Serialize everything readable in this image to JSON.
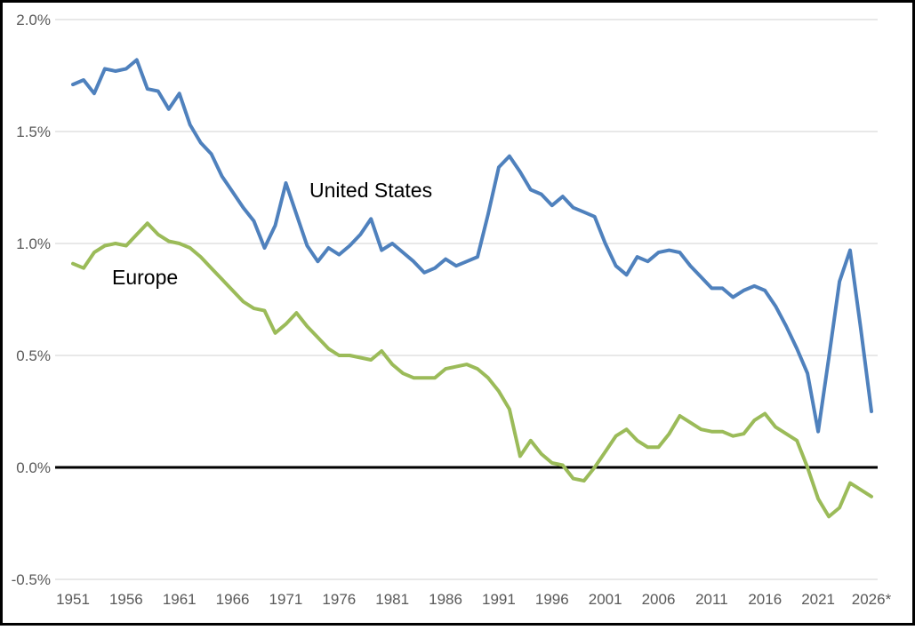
{
  "chart_data": {
    "type": "line",
    "title": "",
    "xlabel": "",
    "ylabel": "",
    "value_format": "percent",
    "grid": "horizontal",
    "legend": "inline-text-annotations",
    "x": [
      1951,
      1952,
      1953,
      1954,
      1955,
      1956,
      1957,
      1958,
      1959,
      1960,
      1961,
      1962,
      1963,
      1964,
      1965,
      1966,
      1967,
      1968,
      1969,
      1970,
      1971,
      1972,
      1973,
      1974,
      1975,
      1976,
      1977,
      1978,
      1979,
      1980,
      1981,
      1982,
      1983,
      1984,
      1985,
      1986,
      1987,
      1988,
      1989,
      1990,
      1991,
      1992,
      1993,
      1994,
      1995,
      1996,
      1997,
      1998,
      1999,
      2000,
      2001,
      2002,
      2003,
      2004,
      2005,
      2006,
      2007,
      2008,
      2009,
      2010,
      2011,
      2012,
      2013,
      2014,
      2015,
      2016,
      2017,
      2018,
      2019,
      2020,
      2021,
      2022,
      2023,
      2024,
      2025,
      2026
    ],
    "series": [
      {
        "name": "United States",
        "color": "#4F81BD",
        "values": [
          1.71,
          1.73,
          1.67,
          1.78,
          1.77,
          1.78,
          1.82,
          1.69,
          1.68,
          1.6,
          1.67,
          1.53,
          1.45,
          1.4,
          1.3,
          1.23,
          1.16,
          1.1,
          0.98,
          1.08,
          1.27,
          1.13,
          0.99,
          0.92,
          0.98,
          0.95,
          0.99,
          1.04,
          1.11,
          0.97,
          1.0,
          0.96,
          0.92,
          0.87,
          0.89,
          0.93,
          0.9,
          0.92,
          0.94,
          1.13,
          1.34,
          1.39,
          1.32,
          1.24,
          1.22,
          1.17,
          1.21,
          1.16,
          1.14,
          1.12,
          1.0,
          0.9,
          0.86,
          0.94,
          0.92,
          0.96,
          0.97,
          0.96,
          0.9,
          0.85,
          0.8,
          0.8,
          0.76,
          0.79,
          0.81,
          0.79,
          0.72,
          0.63,
          0.53,
          0.42,
          0.16,
          0.49,
          0.83,
          0.97,
          0.62,
          0.25
        ]
      },
      {
        "name": "Europe",
        "color": "#9BBB59",
        "values": [
          0.91,
          0.89,
          0.96,
          0.99,
          1.0,
          0.99,
          1.04,
          1.09,
          1.04,
          1.01,
          1.0,
          0.98,
          0.94,
          0.89,
          0.84,
          0.79,
          0.74,
          0.71,
          0.7,
          0.6,
          0.64,
          0.69,
          0.63,
          0.58,
          0.53,
          0.5,
          0.5,
          0.49,
          0.48,
          0.52,
          0.46,
          0.42,
          0.4,
          0.4,
          0.4,
          0.44,
          0.45,
          0.46,
          0.44,
          0.4,
          0.34,
          0.26,
          0.05,
          0.12,
          0.06,
          0.02,
          0.01,
          -0.05,
          -0.06,
          0.0,
          0.07,
          0.14,
          0.17,
          0.12,
          0.09,
          0.09,
          0.15,
          0.23,
          0.2,
          0.17,
          0.16,
          0.16,
          0.14,
          0.15,
          0.21,
          0.24,
          0.18,
          0.15,
          0.12,
          0.0,
          -0.14,
          -0.22,
          -0.18,
          -0.07,
          -0.1,
          -0.13
        ]
      }
    ],
    "x_axis": {
      "tick_years": [
        1951,
        1956,
        1961,
        1966,
        1971,
        1976,
        1981,
        1986,
        1991,
        1996,
        2001,
        2006,
        2011,
        2016,
        2021,
        2026
      ],
      "tick_labels": [
        "1951",
        "1956",
        "1961",
        "1966",
        "1971",
        "1976",
        "1981",
        "1986",
        "1991",
        "1996",
        "2001",
        "2006",
        "2011",
        "2016",
        "2021",
        "2026*"
      ]
    },
    "y_axis": {
      "min": -0.5,
      "max": 2.0,
      "tick_values": [
        2.0,
        1.5,
        1.0,
        0.5,
        0.0,
        -0.5
      ],
      "tick_labels": [
        "2.0%",
        "1.5%",
        "1.0%",
        "0.5%",
        "0.0%",
        "-0.5%"
      ]
    },
    "zero_line": true,
    "annotations": [
      {
        "text": "United States",
        "series": "United States"
      },
      {
        "text": "Europe",
        "series": "Europe"
      }
    ]
  },
  "colors": {
    "background": "#FFFFFF",
    "border": "#000000",
    "gridline": "#D9D9D9",
    "zero_line": "#000000",
    "tick_label": "#595959",
    "us_line": "#4F81BD",
    "europe_line": "#9BBB59"
  }
}
